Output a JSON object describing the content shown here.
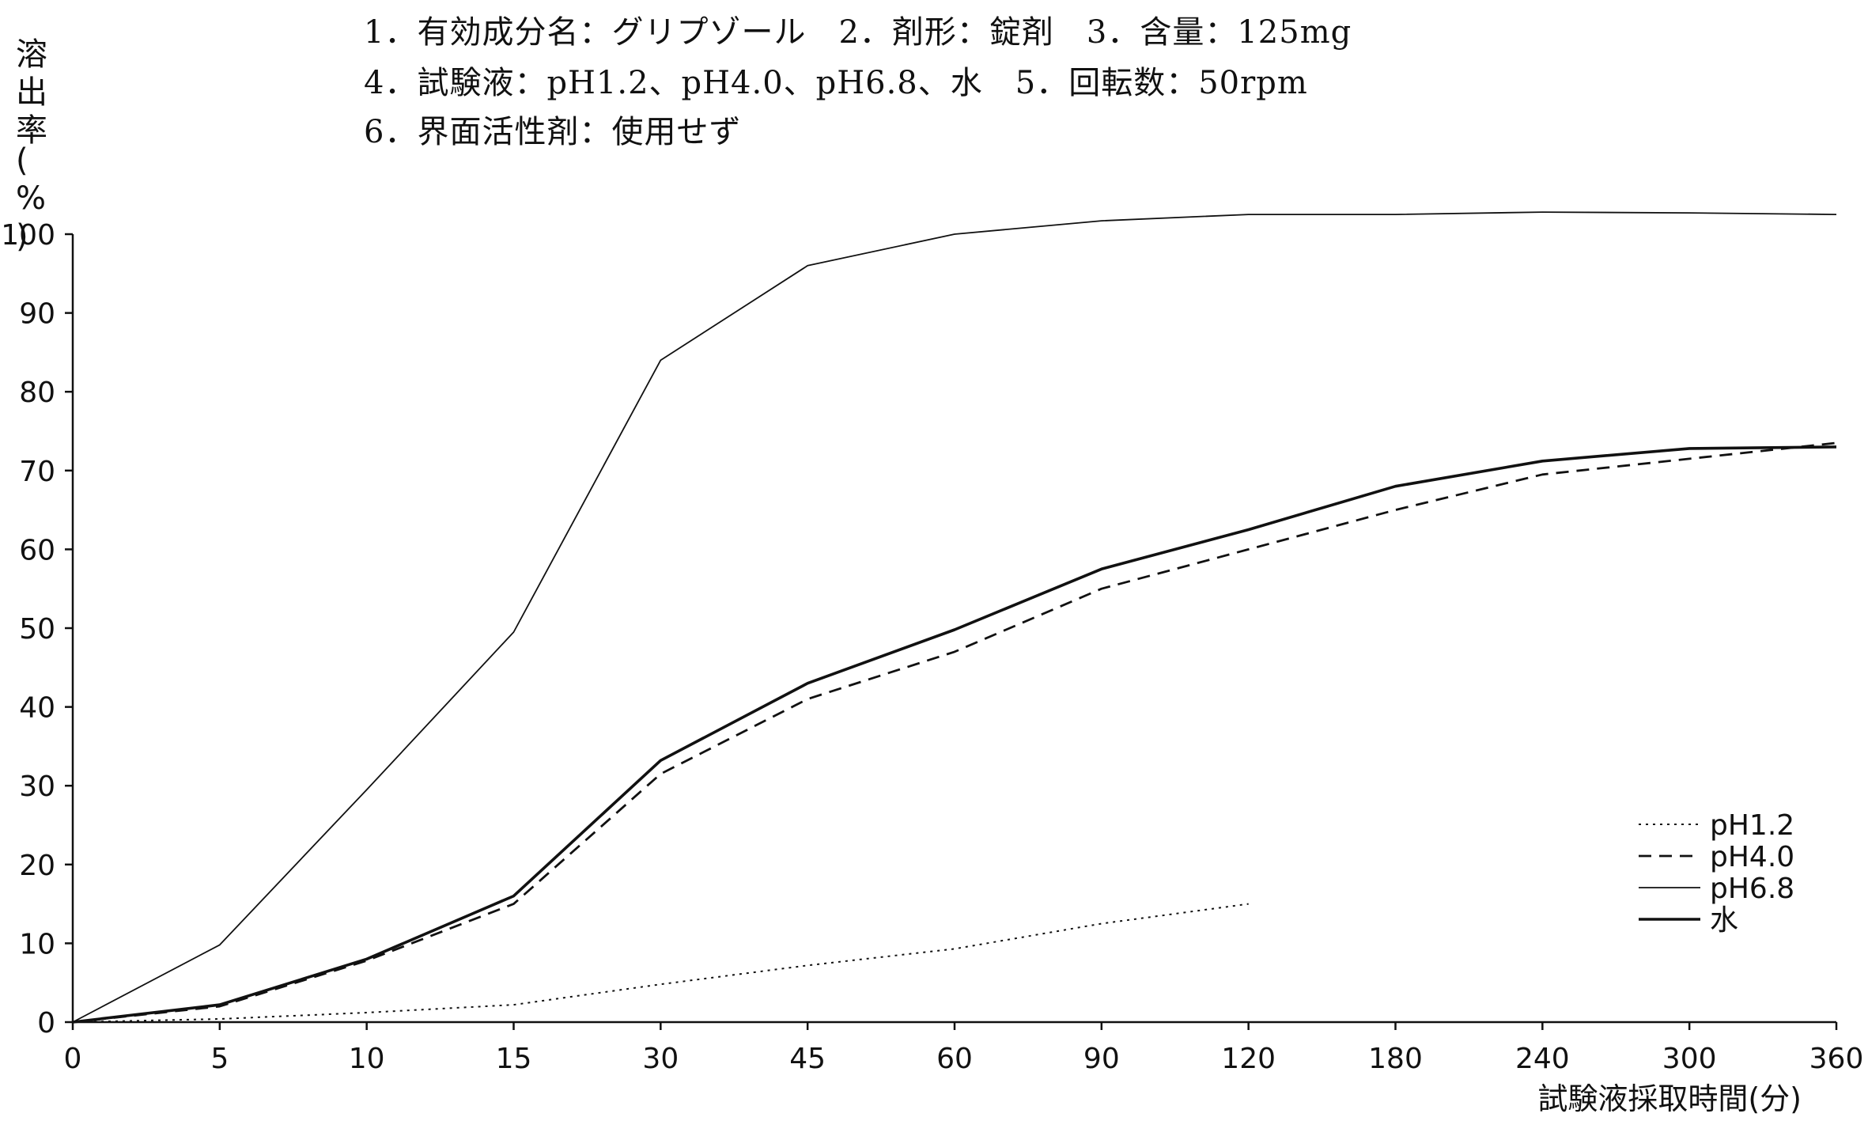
{
  "chart_data": {
    "type": "line",
    "title": "",
    "info_lines": [
      "1．有効成分名：グリプゾール　2．剤形：錠剤　3．含量：125mg",
      "4．試験液：pH1.2、pH4.0、pH6.8、水　5．回転数：50rpm",
      "6．界面活性剤：使用せず"
    ],
    "ylabel": "溶出率(%)",
    "xlabel": "試験液採取時間(分)",
    "x_categories": [
      "0",
      "5",
      "10",
      "15",
      "30",
      "45",
      "60",
      "90",
      "120",
      "180",
      "240",
      "300",
      "360"
    ],
    "y_ticks": [
      0,
      10,
      20,
      30,
      40,
      50,
      60,
      70,
      80,
      90,
      100
    ],
    "ylim": [
      0,
      100
    ],
    "grid": false,
    "legend_position": "bottom-right",
    "series": [
      {
        "name": "pH1.2",
        "style": "dotted",
        "values": [
          0,
          0.4,
          1.2,
          2.2,
          4.8,
          7.2,
          9.3,
          12.5,
          15.0,
          null,
          null,
          null,
          null
        ]
      },
      {
        "name": "pH4.0",
        "style": "dashed",
        "values": [
          0,
          2.0,
          7.8,
          15.0,
          31.5,
          41.0,
          47.0,
          55.0,
          60.0,
          65.0,
          69.5,
          71.5,
          73.5
        ]
      },
      {
        "name": "pH6.8",
        "style": "thin-solid",
        "values": [
          0,
          9.8,
          29.5,
          49.5,
          84.0,
          96.0,
          100.0,
          101.7,
          102.5,
          102.5,
          102.8,
          102.7,
          102.5
        ]
      },
      {
        "name": "水",
        "style": "solid",
        "values": [
          0,
          2.2,
          8.0,
          16.0,
          33.2,
          43.0,
          49.8,
          57.5,
          62.5,
          68.0,
          71.2,
          72.8,
          73.0
        ]
      }
    ]
  }
}
